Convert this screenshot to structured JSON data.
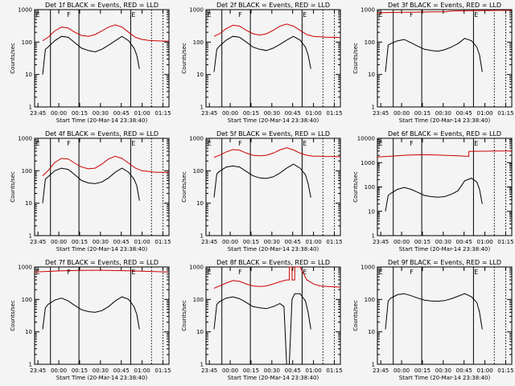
{
  "chart_data": [
    {
      "type": "line",
      "title": "Det 1f BLACK = Events, RED = LLD",
      "xlabel": "Start Time (20-Mar-14 23:38:40)",
      "ylabel": "Counts/sec",
      "yscale": "log",
      "ylim": [
        1,
        1000
      ],
      "x_ticks": [
        "23:45",
        "00:00",
        "00:15",
        "00:30",
        "00:45",
        "01:00",
        "01:15"
      ],
      "y_ticks": [
        "1",
        "10",
        "100",
        "1000"
      ],
      "markers": [
        "E",
        "F",
        "E"
      ],
      "series": [
        {
          "color": "#cc0000",
          "x": [
            0.06,
            0.1,
            0.15,
            0.2,
            0.25,
            0.3,
            0.35,
            0.4,
            0.45,
            0.5,
            0.55,
            0.6,
            0.65,
            0.7,
            0.75,
            0.8,
            0.85,
            0.9,
            0.95,
            1.0
          ],
          "values": [
            110,
            140,
            220,
            290,
            270,
            200,
            160,
            150,
            170,
            220,
            290,
            340,
            290,
            200,
            140,
            120,
            112,
            110,
            108,
            106
          ]
        },
        {
          "color": "#000000",
          "x": [
            0.06,
            0.08,
            0.1,
            0.15,
            0.2,
            0.25,
            0.3,
            0.35,
            0.4,
            0.45,
            0.5,
            0.55,
            0.6,
            0.65,
            0.7,
            0.74,
            0.76,
            0.78
          ],
          "values": [
            10,
            60,
            70,
            110,
            150,
            140,
            95,
            65,
            55,
            50,
            60,
            80,
            110,
            150,
            110,
            65,
            40,
            15
          ]
        }
      ]
    },
    {
      "type": "line",
      "title": "Det 2f BLACK = Events, RED = LLD",
      "xlabel": "Start Time (20-Mar-14 23:38:40)",
      "ylabel": "Counts/sec",
      "yscale": "log",
      "ylim": [
        1,
        1000
      ],
      "x_ticks": [
        "23:45",
        "00:00",
        "00:15",
        "00:30",
        "00:45",
        "01:00",
        "01:15"
      ],
      "y_ticks": [
        "1",
        "10",
        "100",
        "1000"
      ],
      "markers": [
        "E",
        "F",
        "E"
      ],
      "series": [
        {
          "color": "#cc0000",
          "x": [
            0.06,
            0.1,
            0.15,
            0.2,
            0.25,
            0.3,
            0.35,
            0.4,
            0.45,
            0.5,
            0.55,
            0.6,
            0.65,
            0.7,
            0.75,
            0.8,
            0.85,
            0.9,
            0.95,
            1.0
          ],
          "values": [
            150,
            180,
            260,
            330,
            310,
            230,
            180,
            165,
            180,
            230,
            310,
            360,
            310,
            230,
            170,
            150,
            145,
            140,
            140,
            138
          ]
        },
        {
          "color": "#000000",
          "x": [
            0.06,
            0.08,
            0.1,
            0.15,
            0.2,
            0.25,
            0.3,
            0.35,
            0.4,
            0.45,
            0.5,
            0.55,
            0.6,
            0.65,
            0.7,
            0.74,
            0.76,
            0.78
          ],
          "values": [
            12,
            60,
            75,
            115,
            150,
            140,
            100,
            70,
            60,
            55,
            65,
            85,
            115,
            150,
            115,
            70,
            40,
            15
          ]
        }
      ]
    },
    {
      "type": "line",
      "title": "Det 3f BLACK = Events, RED = LLD",
      "xlabel": "Start Time (20-Mar-14 23:38:40)",
      "ylabel": "Counts/sec",
      "yscale": "log",
      "ylim": [
        1,
        1000
      ],
      "x_ticks": [
        "23:45",
        "00:00",
        "00:15",
        "00:30",
        "00:45",
        "01:00",
        "01:15"
      ],
      "y_ticks": [
        "1",
        "10",
        "100",
        "1000"
      ],
      "markers": [
        "E",
        "F",
        "E"
      ],
      "series": [
        {
          "color": "#cc0000",
          "x": [
            0.0,
            0.1,
            0.2,
            0.3,
            0.4,
            0.5,
            0.55,
            0.6,
            0.7,
            0.8,
            0.9,
            1.0
          ],
          "values": [
            800,
            820,
            830,
            840,
            850,
            850,
            900,
            920,
            930,
            940,
            950,
            950
          ]
        },
        {
          "color": "#000000",
          "x": [
            0.06,
            0.08,
            0.1,
            0.15,
            0.2,
            0.25,
            0.3,
            0.35,
            0.4,
            0.45,
            0.5,
            0.55,
            0.6,
            0.65,
            0.7,
            0.74,
            0.76,
            0.78
          ],
          "values": [
            12,
            80,
            90,
            110,
            120,
            95,
            75,
            60,
            55,
            52,
            58,
            70,
            90,
            130,
            110,
            70,
            40,
            12
          ]
        }
      ]
    },
    {
      "type": "line",
      "title": "Det 4f BLACK = Events, RED = LLD",
      "xlabel": "Start Time (20-Mar-14 23:38:40)",
      "ylabel": "Counts/sec",
      "yscale": "log",
      "ylim": [
        1,
        1000
      ],
      "x_ticks": [
        "23:45",
        "00:00",
        "00:15",
        "00:30",
        "00:45",
        "01:00",
        "01:15"
      ],
      "y_ticks": [
        "1",
        "10",
        "100",
        "1000"
      ],
      "markers": [
        "E",
        "F",
        "E"
      ],
      "series": [
        {
          "color": "#cc0000",
          "x": [
            0.06,
            0.1,
            0.15,
            0.2,
            0.25,
            0.3,
            0.35,
            0.4,
            0.45,
            0.5,
            0.55,
            0.6,
            0.65,
            0.7,
            0.75,
            0.8,
            0.85,
            0.9,
            0.95,
            1.0
          ],
          "values": [
            70,
            100,
            180,
            240,
            230,
            170,
            130,
            115,
            120,
            160,
            230,
            280,
            240,
            170,
            120,
            100,
            95,
            90,
            90,
            88
          ]
        },
        {
          "color": "#000000",
          "x": [
            0.06,
            0.08,
            0.1,
            0.15,
            0.2,
            0.25,
            0.3,
            0.35,
            0.4,
            0.45,
            0.5,
            0.55,
            0.6,
            0.65,
            0.7,
            0.74,
            0.76,
            0.78
          ],
          "values": [
            10,
            55,
            65,
            100,
            120,
            110,
            75,
            50,
            42,
            40,
            45,
            60,
            90,
            120,
            90,
            55,
            35,
            12
          ]
        }
      ]
    },
    {
      "type": "line",
      "title": "Det 5f BLACK = Events, RED = LLD",
      "xlabel": "Start Time (20-Mar-14 23:38:40)",
      "ylabel": "Counts/sec",
      "yscale": "log",
      "ylim": [
        1,
        1000
      ],
      "x_ticks": [
        "23:45",
        "00:00",
        "00:15",
        "00:30",
        "00:45",
        "01:00",
        "01:15"
      ],
      "y_ticks": [
        "1",
        "10",
        "100",
        "1000"
      ],
      "markers": [
        "E",
        "F",
        "E"
      ],
      "series": [
        {
          "color": "#cc0000",
          "x": [
            0.06,
            0.1,
            0.15,
            0.2,
            0.25,
            0.3,
            0.35,
            0.4,
            0.45,
            0.5,
            0.55,
            0.6,
            0.65,
            0.7,
            0.75,
            0.8,
            0.85,
            0.9,
            0.95,
            1.0
          ],
          "values": [
            260,
            300,
            380,
            450,
            430,
            350,
            300,
            290,
            300,
            350,
            440,
            510,
            440,
            350,
            300,
            280,
            280,
            275,
            275,
            270
          ]
        },
        {
          "color": "#000000",
          "x": [
            0.06,
            0.08,
            0.1,
            0.15,
            0.2,
            0.25,
            0.3,
            0.35,
            0.4,
            0.45,
            0.5,
            0.55,
            0.6,
            0.65,
            0.7,
            0.74,
            0.76,
            0.78
          ],
          "values": [
            15,
            80,
            95,
            130,
            140,
            130,
            95,
            70,
            60,
            58,
            65,
            85,
            120,
            160,
            120,
            75,
            40,
            15
          ]
        }
      ]
    },
    {
      "type": "line",
      "title": "Det 6f BLACK = Events, RED = LLD",
      "xlabel": "Start Time (20-Mar-14 23:38:40)",
      "ylabel": "Counts/sec",
      "yscale": "log",
      "ylim": [
        1,
        10000
      ],
      "x_ticks": [
        "23:45",
        "00:00",
        "00:15",
        "00:30",
        "00:45",
        "01:00",
        "01:15"
      ],
      "y_ticks": [
        "1",
        "10",
        "100",
        "1000",
        "10000"
      ],
      "markers": [
        "E",
        "F",
        "E"
      ],
      "series": [
        {
          "color": "#cc0000",
          "x": [
            0.0,
            0.1,
            0.2,
            0.3,
            0.4,
            0.5,
            0.6,
            0.68,
            0.681,
            0.8,
            0.9,
            1.0
          ],
          "values": [
            1700,
            1850,
            2000,
            2100,
            2100,
            2000,
            1900,
            1800,
            2900,
            2950,
            3000,
            3000
          ]
        },
        {
          "color": "#000000",
          "x": [
            0.06,
            0.08,
            0.1,
            0.15,
            0.2,
            0.25,
            0.3,
            0.35,
            0.4,
            0.45,
            0.5,
            0.55,
            0.6,
            0.65,
            0.7,
            0.74,
            0.76,
            0.78
          ],
          "values": [
            10,
            45,
            55,
            80,
            95,
            80,
            60,
            45,
            40,
            38,
            40,
            50,
            70,
            180,
            230,
            160,
            80,
            20
          ]
        }
      ]
    },
    {
      "type": "line",
      "title": "Det 7f BLACK = Events, RED = LLD",
      "xlabel": "Start Time (20-Mar-14 23:38:40)",
      "ylabel": "Counts/sec",
      "yscale": "log",
      "ylim": [
        1,
        1000
      ],
      "x_ticks": [
        "23:45",
        "00:00",
        "00:15",
        "00:30",
        "00:45",
        "01:00",
        "01:15"
      ],
      "y_ticks": [
        "1",
        "10",
        "100",
        "1000"
      ],
      "markers": [
        "E",
        "F",
        "E"
      ],
      "series": [
        {
          "color": "#cc0000",
          "x": [
            0.0,
            0.1,
            0.2,
            0.3,
            0.4,
            0.5,
            0.6,
            0.7,
            0.8,
            0.9,
            1.0
          ],
          "values": [
            700,
            730,
            760,
            780,
            790,
            790,
            780,
            760,
            740,
            720,
            700
          ]
        },
        {
          "color": "#000000",
          "x": [
            0.06,
            0.08,
            0.1,
            0.15,
            0.2,
            0.25,
            0.3,
            0.35,
            0.4,
            0.45,
            0.5,
            0.55,
            0.6,
            0.65,
            0.7,
            0.74,
            0.76,
            0.78
          ],
          "values": [
            12,
            55,
            70,
            95,
            110,
            90,
            65,
            48,
            42,
            40,
            45,
            60,
            90,
            120,
            100,
            60,
            35,
            12
          ]
        }
      ]
    },
    {
      "type": "line",
      "title": "Det 8f BLACK = Events, RED = LLD",
      "xlabel": "Start Time (20-Mar-14 23:38:40)",
      "ylabel": "Counts/sec",
      "yscale": "log",
      "ylim": [
        1,
        1000
      ],
      "x_ticks": [
        "23:45",
        "00:00",
        "00:15",
        "00:30",
        "00:45",
        "01:00",
        "01:15"
      ],
      "y_ticks": [
        "1",
        "10",
        "100",
        "1000"
      ],
      "markers": [
        "E",
        "F",
        "E"
      ],
      "series": [
        {
          "color": "#cc0000",
          "x": [
            0.06,
            0.1,
            0.15,
            0.2,
            0.25,
            0.3,
            0.35,
            0.4,
            0.45,
            0.5,
            0.55,
            0.6,
            0.62,
            0.621,
            0.64,
            0.641,
            0.66,
            0.661,
            0.7,
            0.75,
            0.8,
            0.85,
            0.9,
            1.0
          ],
          "values": [
            220,
            260,
            320,
            380,
            360,
            300,
            260,
            250,
            260,
            300,
            350,
            400,
            400,
            1000,
            1000,
            400,
            400,
            1000,
            1000,
            400,
            300,
            260,
            250,
            240
          ]
        },
        {
          "color": "#000000",
          "x": [
            0.06,
            0.08,
            0.1,
            0.15,
            0.2,
            0.25,
            0.3,
            0.35,
            0.4,
            0.45,
            0.5,
            0.55,
            0.58,
            0.6,
            0.62,
            0.64,
            0.66,
            0.7,
            0.74,
            0.76,
            0.78
          ],
          "values": [
            12,
            70,
            85,
            110,
            120,
            105,
            80,
            60,
            55,
            52,
            60,
            75,
            60,
            1,
            1,
            100,
            150,
            150,
            90,
            40,
            12
          ]
        }
      ]
    },
    {
      "type": "line",
      "title": "Det 9f BLACK = Events, RED = LLD",
      "xlabel": "Start Time (20-Mar-14 23:38:40)",
      "ylabel": "Counts/sec",
      "yscale": "log",
      "ylim": [
        1,
        1000
      ],
      "x_ticks": [
        "23:45",
        "00:00",
        "00:15",
        "00:30",
        "00:45",
        "01:00",
        "01:15"
      ],
      "y_ticks": [
        "1",
        "10",
        "100",
        "1000"
      ],
      "markers": [
        "E",
        "F",
        "E"
      ],
      "series": [
        {
          "color": "#000000",
          "x": [
            0.06,
            0.08,
            0.1,
            0.15,
            0.2,
            0.25,
            0.3,
            0.35,
            0.4,
            0.45,
            0.5,
            0.55,
            0.6,
            0.65,
            0.7,
            0.74,
            0.76,
            0.78
          ],
          "values": [
            12,
            90,
            110,
            140,
            150,
            130,
            110,
            95,
            90,
            88,
            92,
            105,
            125,
            150,
            120,
            80,
            40,
            12
          ]
        }
      ]
    }
  ]
}
